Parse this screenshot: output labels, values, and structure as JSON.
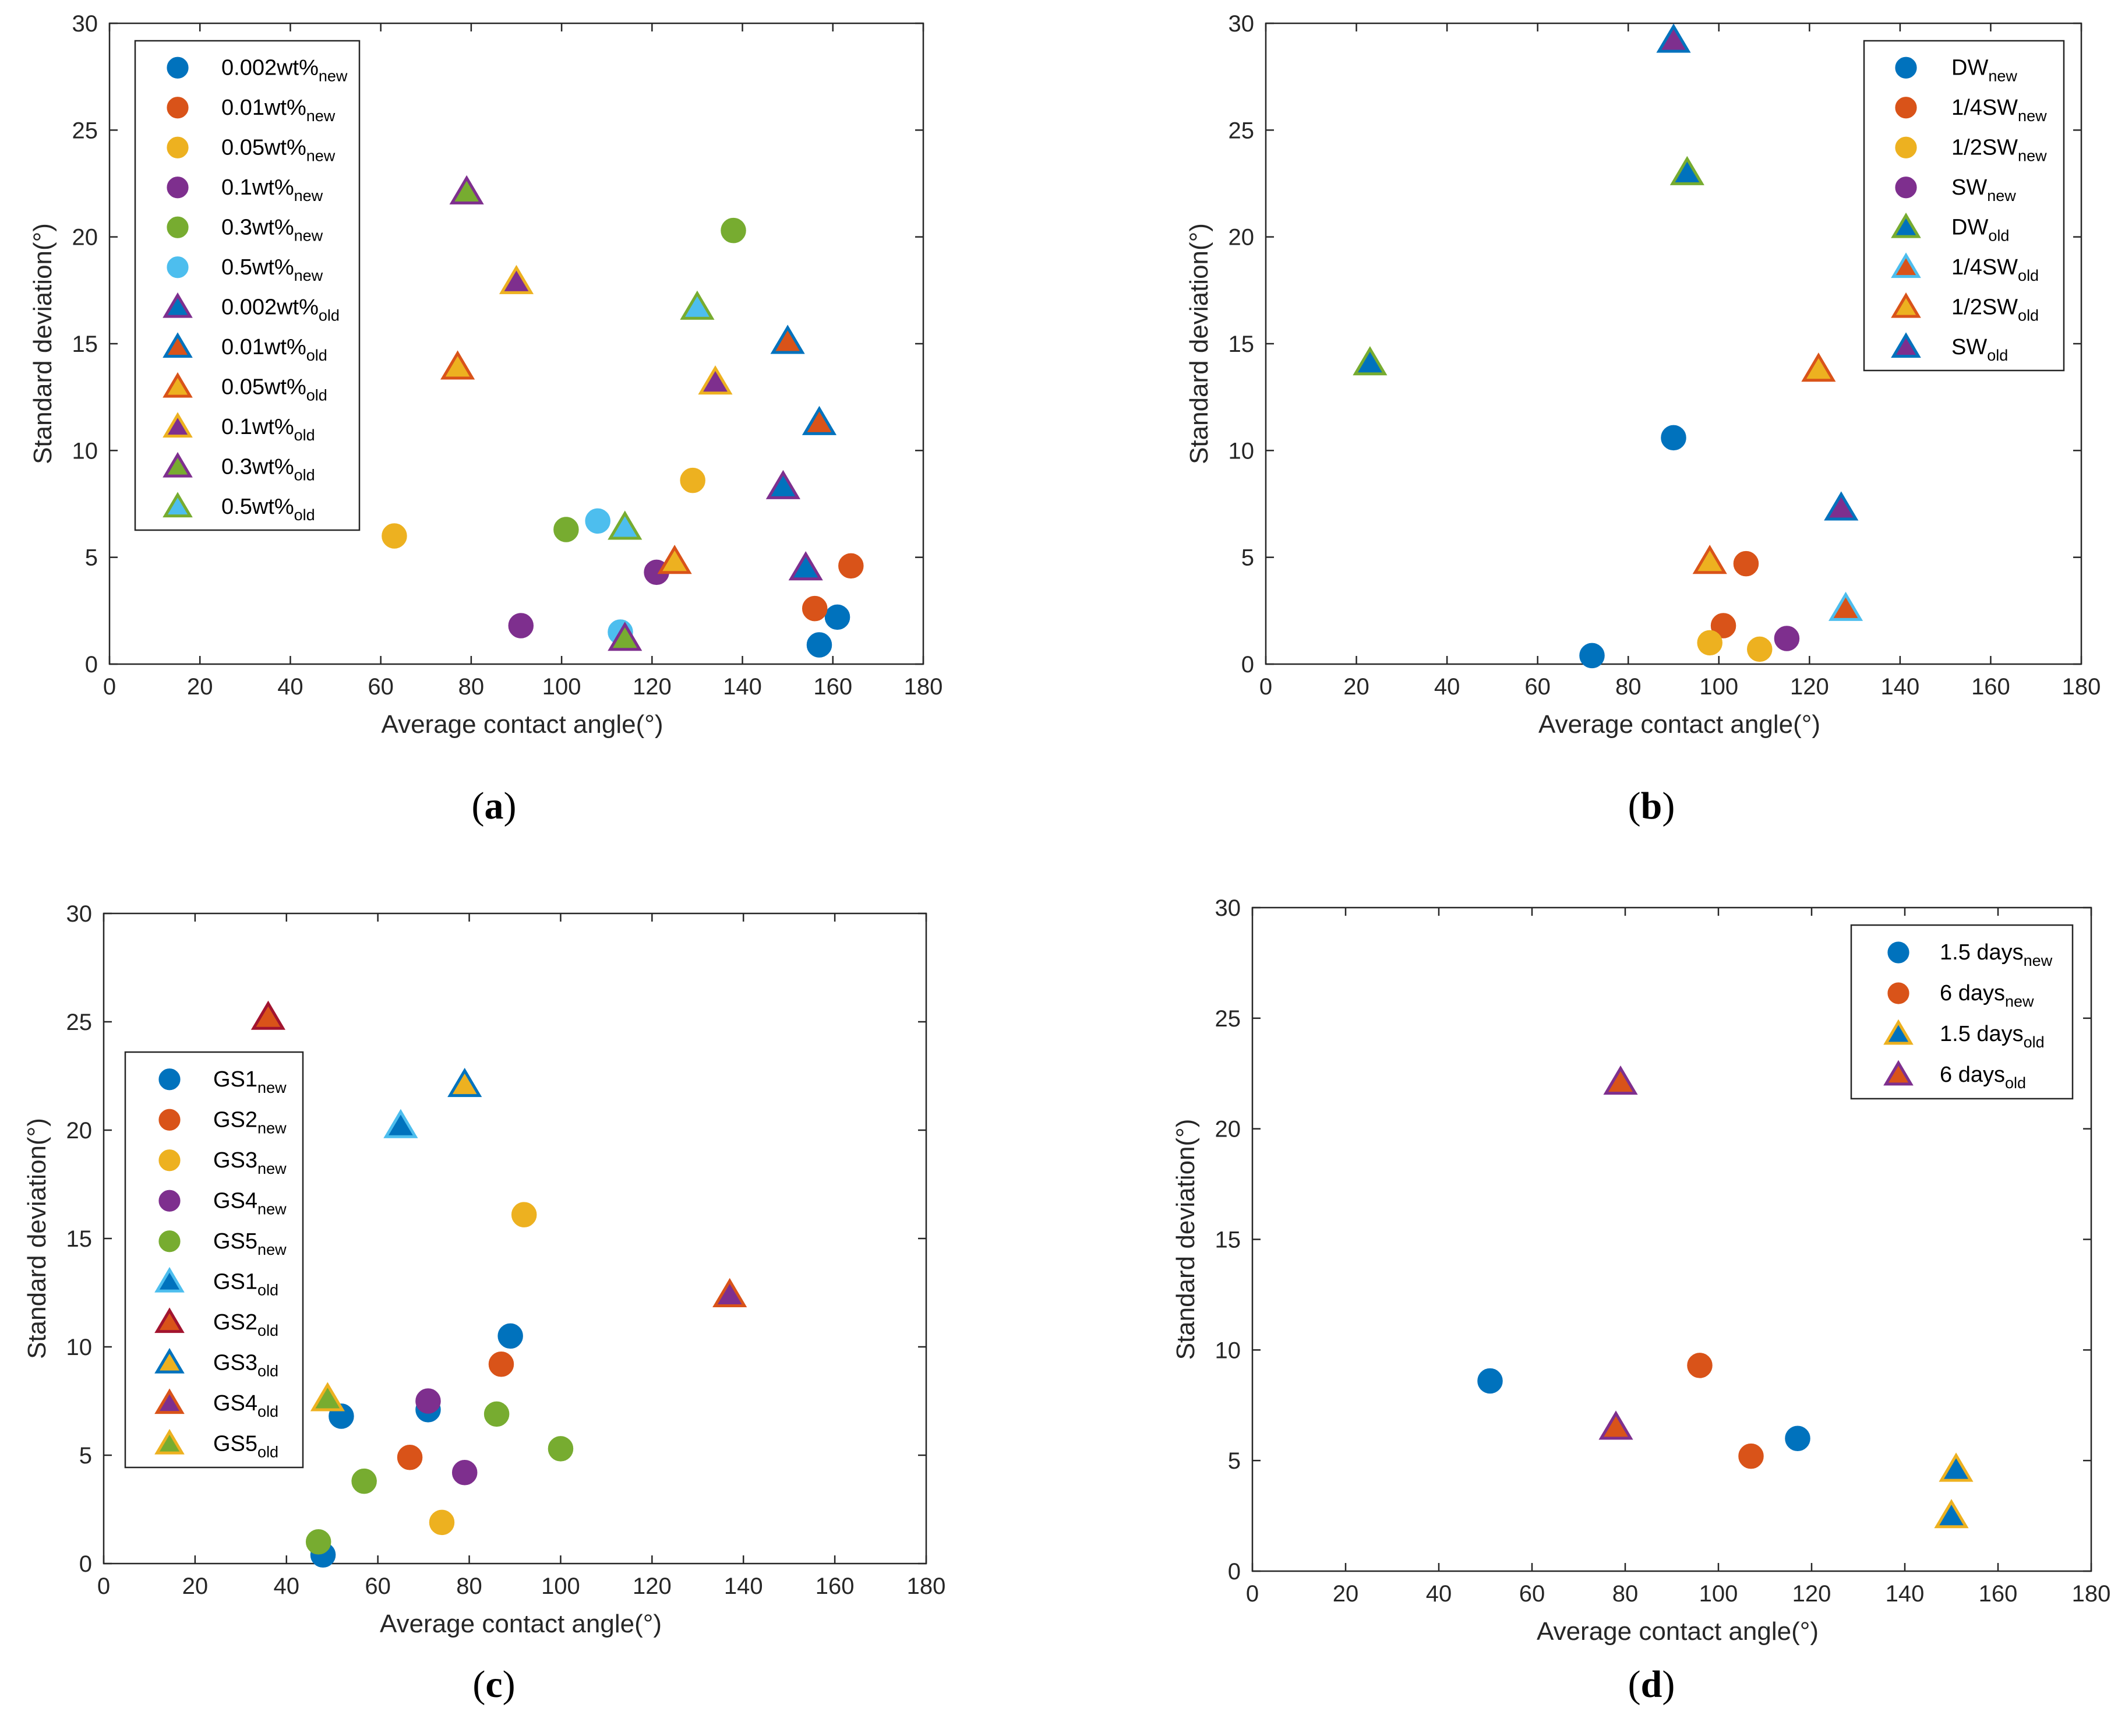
{
  "colors": {
    "blue": "#0072BD",
    "orange": "#D95319",
    "yellow": "#EDB120",
    "purple": "#7E2F8E",
    "green": "#77AC30",
    "cyan": "#4DBEEE"
  },
  "chart_data": [
    {
      "type": "scatter",
      "panel_label": "a",
      "xlabel": "Average contact angle(°)",
      "ylabel": "Standard deviation(°)",
      "xlim": [
        0,
        180
      ],
      "ylim": [
        0,
        30
      ],
      "xticks": [
        "0",
        "20",
        "40",
        "60",
        "80",
        "100",
        "120",
        "140",
        "160",
        "180"
      ],
      "yticks": [
        "0",
        "5",
        "10",
        "15",
        "20",
        "25",
        "30"
      ],
      "legend_position": "top-left",
      "series": [
        {
          "name": "0.002wt%",
          "sub": "new",
          "marker": "circle",
          "fill": "#0072BD",
          "edge": "#0072BD",
          "points": [
            [
              157,
              0.9
            ],
            [
              161,
              2.2
            ]
          ]
        },
        {
          "name": "0.01wt%",
          "sub": "new",
          "marker": "circle",
          "fill": "#D95319",
          "edge": "#D95319",
          "points": [
            [
              156,
              2.6
            ],
            [
              164,
              4.6
            ]
          ]
        },
        {
          "name": "0.05wt%",
          "sub": "new",
          "marker": "circle",
          "fill": "#EDB120",
          "edge": "#EDB120",
          "points": [
            [
              63,
              6.0
            ],
            [
              129,
              8.6
            ]
          ]
        },
        {
          "name": "0.1wt%",
          "sub": "new",
          "marker": "circle",
          "fill": "#7E2F8E",
          "edge": "#7E2F8E",
          "points": [
            [
              91,
              1.8
            ],
            [
              121,
              4.3
            ]
          ]
        },
        {
          "name": "0.3wt%",
          "sub": "new",
          "marker": "circle",
          "fill": "#77AC30",
          "edge": "#77AC30",
          "points": [
            [
              101,
              6.3
            ],
            [
              138,
              20.3
            ]
          ]
        },
        {
          "name": "0.5wt%",
          "sub": "new",
          "marker": "circle",
          "fill": "#4DBEEE",
          "edge": "#4DBEEE",
          "points": [
            [
              108,
              6.7
            ],
            [
              113,
              1.5
            ]
          ]
        },
        {
          "name": "0.002wt%",
          "sub": "old",
          "marker": "triangle",
          "fill": "#0072BD",
          "edge": "#7E2F8E",
          "points": [
            [
              149,
              8.3
            ],
            [
              154,
              4.5
            ]
          ]
        },
        {
          "name": "0.01wt%",
          "sub": "old",
          "marker": "triangle",
          "fill": "#D95319",
          "edge": "#0072BD",
          "points": [
            [
              150,
              15.1
            ],
            [
              157,
              11.3
            ]
          ]
        },
        {
          "name": "0.05wt%",
          "sub": "old",
          "marker": "triangle",
          "fill": "#EDB120",
          "edge": "#D95319",
          "points": [
            [
              77,
              13.9
            ],
            [
              125,
              4.8
            ]
          ]
        },
        {
          "name": "0.1wt%",
          "sub": "old",
          "marker": "triangle",
          "fill": "#7E2F8E",
          "edge": "#EDB120",
          "points": [
            [
              90,
              17.9
            ],
            [
              134,
              13.2
            ]
          ]
        },
        {
          "name": "0.3wt%",
          "sub": "old",
          "marker": "triangle",
          "fill": "#77AC30",
          "edge": "#7E2F8E",
          "points": [
            [
              79,
              22.1
            ],
            [
              114,
              1.2
            ]
          ]
        },
        {
          "name": "0.5wt%",
          "sub": "old",
          "marker": "triangle",
          "fill": "#4DBEEE",
          "edge": "#77AC30",
          "points": [
            [
              114,
              6.4
            ],
            [
              130,
              16.7
            ]
          ]
        }
      ]
    },
    {
      "type": "scatter",
      "panel_label": "b",
      "xlabel": "Average contact angle(°)",
      "ylabel": "Standard deviation(°)",
      "xlim": [
        0,
        180
      ],
      "ylim": [
        0,
        30
      ],
      "xticks": [
        "0",
        "20",
        "40",
        "60",
        "80",
        "100",
        "120",
        "140",
        "160",
        "180"
      ],
      "yticks": [
        "0",
        "5",
        "10",
        "15",
        "20",
        "25",
        "30"
      ],
      "legend_position": "top-right",
      "series": [
        {
          "name": "DW",
          "sub": "new",
          "marker": "circle",
          "fill": "#0072BD",
          "edge": "#0072BD",
          "points": [
            [
              72,
              0.4
            ],
            [
              90,
              10.6
            ]
          ]
        },
        {
          "name": "1/4SW",
          "sub": "new",
          "marker": "circle",
          "fill": "#D95319",
          "edge": "#D95319",
          "points": [
            [
              101,
              1.8
            ],
            [
              106,
              4.7
            ]
          ]
        },
        {
          "name": "1/2SW",
          "sub": "new",
          "marker": "circle",
          "fill": "#EDB120",
          "edge": "#EDB120",
          "points": [
            [
              98,
              1.0
            ],
            [
              109,
              0.7
            ]
          ]
        },
        {
          "name": "SW",
          "sub": "new",
          "marker": "circle",
          "fill": "#7E2F8E",
          "edge": "#7E2F8E",
          "points": [
            [
              115,
              1.2
            ]
          ]
        },
        {
          "name": "DW",
          "sub": "old",
          "marker": "triangle",
          "fill": "#0072BD",
          "edge": "#77AC30",
          "points": [
            [
              23,
              14.1
            ],
            [
              93,
              23.0
            ]
          ]
        },
        {
          "name": "1/4SW",
          "sub": "old",
          "marker": "triangle",
          "fill": "#D95319",
          "edge": "#4DBEEE",
          "points": [
            [
              128,
              2.6
            ]
          ]
        },
        {
          "name": "1/2SW",
          "sub": "old",
          "marker": "triangle",
          "fill": "#EDB120",
          "edge": "#D95319",
          "points": [
            [
              98,
              4.8
            ],
            [
              122,
              13.8
            ]
          ]
        },
        {
          "name": "SW",
          "sub": "old",
          "marker": "triangle",
          "fill": "#7E2F8E",
          "edge": "#0072BD",
          "points": [
            [
              90,
              29.2
            ],
            [
              127,
              7.3
            ]
          ]
        }
      ]
    },
    {
      "type": "scatter",
      "panel_label": "c",
      "xlabel": "Average contact angle(°)",
      "ylabel": "Standard deviation(°)",
      "xlim": [
        0,
        180
      ],
      "ylim": [
        0,
        30
      ],
      "xticks": [
        "0",
        "20",
        "40",
        "60",
        "80",
        "100",
        "120",
        "140",
        "160",
        "180"
      ],
      "yticks": [
        "0",
        "5",
        "10",
        "15",
        "20",
        "25",
        "30"
      ],
      "legend_position": "middle-left",
      "series": [
        {
          "name": "GS1",
          "sub": "new",
          "marker": "circle",
          "fill": "#0072BD",
          "edge": "#0072BD",
          "points": [
            [
              48,
              0.4
            ],
            [
              52,
              6.8
            ],
            [
              71,
              7.1
            ],
            [
              89,
              10.5
            ]
          ]
        },
        {
          "name": "GS2",
          "sub": "new",
          "marker": "circle",
          "fill": "#D95319",
          "edge": "#D95319",
          "points": [
            [
              67,
              4.9
            ],
            [
              87,
              9.2
            ]
          ]
        },
        {
          "name": "GS3",
          "sub": "new",
          "marker": "circle",
          "fill": "#EDB120",
          "edge": "#EDB120",
          "points": [
            [
              74,
              1.9
            ],
            [
              92,
              16.1
            ]
          ]
        },
        {
          "name": "GS4",
          "sub": "new",
          "marker": "circle",
          "fill": "#7E2F8E",
          "edge": "#7E2F8E",
          "points": [
            [
              71,
              7.5
            ],
            [
              79,
              4.2
            ]
          ]
        },
        {
          "name": "GS5",
          "sub": "new",
          "marker": "circle",
          "fill": "#77AC30",
          "edge": "#77AC30",
          "points": [
            [
              47,
              1.0
            ],
            [
              57,
              3.8
            ],
            [
              86,
              6.9
            ],
            [
              100,
              5.3
            ]
          ]
        },
        {
          "name": "GS1",
          "sub": "old",
          "marker": "triangle",
          "fill": "#0072BD",
          "edge": "#4DBEEE",
          "points": [
            [
              65,
              20.2
            ]
          ]
        },
        {
          "name": "GS2",
          "sub": "old",
          "marker": "triangle",
          "fill": "#D95319",
          "edge": "#A2142F",
          "points": [
            [
              36,
              25.2
            ]
          ]
        },
        {
          "name": "GS3",
          "sub": "old",
          "marker": "triangle",
          "fill": "#EDB120",
          "edge": "#0072BD",
          "points": [
            [
              79,
              22.1
            ]
          ]
        },
        {
          "name": "GS4",
          "sub": "old",
          "marker": "triangle",
          "fill": "#7E2F8E",
          "edge": "#D95319",
          "points": [
            [
              137,
              12.4
            ]
          ]
        },
        {
          "name": "GS5",
          "sub": "old",
          "marker": "triangle",
          "fill": "#77AC30",
          "edge": "#EDB120",
          "points": [
            [
              49,
              7.6
            ]
          ]
        }
      ]
    },
    {
      "type": "scatter",
      "panel_label": "d",
      "xlabel": "Average contact angle(°)",
      "ylabel": "Standard deviation(°)",
      "xlim": [
        0,
        180
      ],
      "ylim": [
        0,
        30
      ],
      "xticks": [
        "0",
        "20",
        "40",
        "60",
        "80",
        "100",
        "120",
        "140",
        "160",
        "180"
      ],
      "yticks": [
        "0",
        "5",
        "10",
        "15",
        "20",
        "25",
        "30"
      ],
      "legend_position": "top-right",
      "series": [
        {
          "name": "1.5 days",
          "sub": "new",
          "marker": "circle",
          "fill": "#0072BD",
          "edge": "#0072BD",
          "points": [
            [
              51,
              8.6
            ],
            [
              117,
              6.0
            ]
          ]
        },
        {
          "name": "6 days",
          "sub": "new",
          "marker": "circle",
          "fill": "#D95319",
          "edge": "#D95319",
          "points": [
            [
              96,
              9.3
            ],
            [
              107,
              5.2
            ]
          ]
        },
        {
          "name": "1.5 days",
          "sub": "old",
          "marker": "triangle",
          "fill": "#0072BD",
          "edge": "#EDB120",
          "points": [
            [
              150,
              2.5
            ],
            [
              151,
              4.6
            ]
          ]
        },
        {
          "name": "6 days",
          "sub": "old",
          "marker": "triangle",
          "fill": "#D95319",
          "edge": "#7E2F8E",
          "points": [
            [
              78,
              6.5
            ],
            [
              79,
              22.1
            ]
          ]
        }
      ]
    }
  ]
}
